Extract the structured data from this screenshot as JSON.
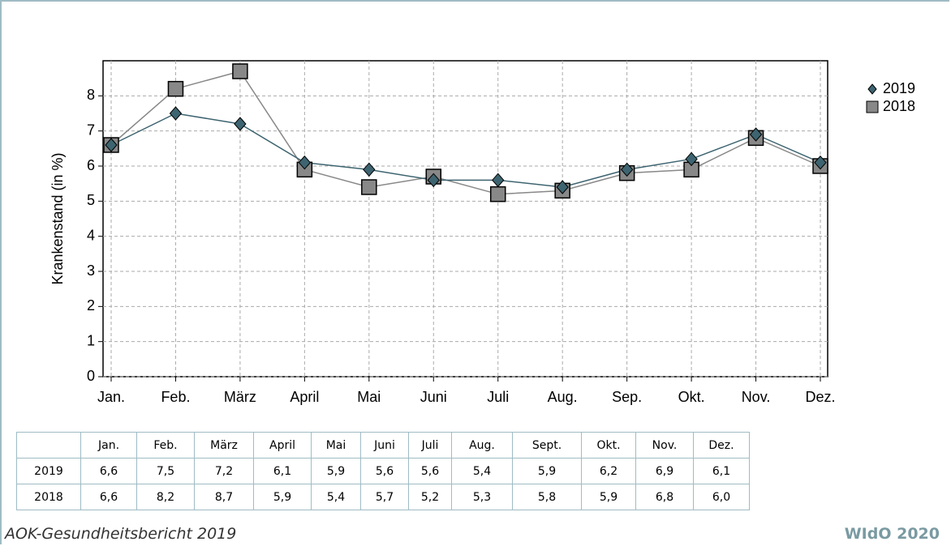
{
  "chart_data": {
    "type": "line",
    "y_label": "Krankenstand (in %)",
    "categories": [
      "Jan.",
      "Feb.",
      "März",
      "April",
      "Mai",
      "Juni",
      "Juli",
      "Aug.",
      "Sep.",
      "Okt.",
      "Nov.",
      "Dez."
    ],
    "series": [
      {
        "name": "2019",
        "color": "#3d6470",
        "marker": "diamond",
        "values": [
          6.6,
          7.5,
          7.2,
          6.1,
          5.9,
          5.6,
          5.6,
          5.4,
          5.9,
          6.2,
          6.9,
          6.1
        ]
      },
      {
        "name": "2018",
        "color": "#888888",
        "marker": "square",
        "values": [
          6.6,
          8.2,
          8.7,
          5.9,
          5.4,
          5.7,
          5.2,
          5.3,
          5.8,
          5.9,
          6.8,
          6.0
        ]
      }
    ],
    "ylim": [
      0,
      9
    ],
    "yticks": [
      0,
      1,
      2,
      3,
      4,
      5,
      6,
      7,
      8
    ],
    "grid": true,
    "legend": "right"
  },
  "table": {
    "columns": [
      "Jan.",
      "Feb.",
      "März",
      "April",
      "Mai",
      "Juni",
      "Juli",
      "Aug.",
      "Sept.",
      "Okt.",
      "Nov.",
      "Dez."
    ],
    "rows": [
      {
        "label": "2019",
        "cells": [
          "6,6",
          "7,5",
          "7,2",
          "6,1",
          "5,9",
          "5,6",
          "5,6",
          "5,4",
          "5,9",
          "6,2",
          "6,9",
          "6,1"
        ]
      },
      {
        "label": "2018",
        "cells": [
          "6,6",
          "8,2",
          "8,7",
          "5,9",
          "5,4",
          "5,7",
          "5,2",
          "5,3",
          "5,8",
          "5,9",
          "6,8",
          "6,0"
        ]
      }
    ]
  },
  "footer": {
    "source": "AOK-Gesundheitsbericht 2019",
    "publisher": "WIdO 2020"
  }
}
